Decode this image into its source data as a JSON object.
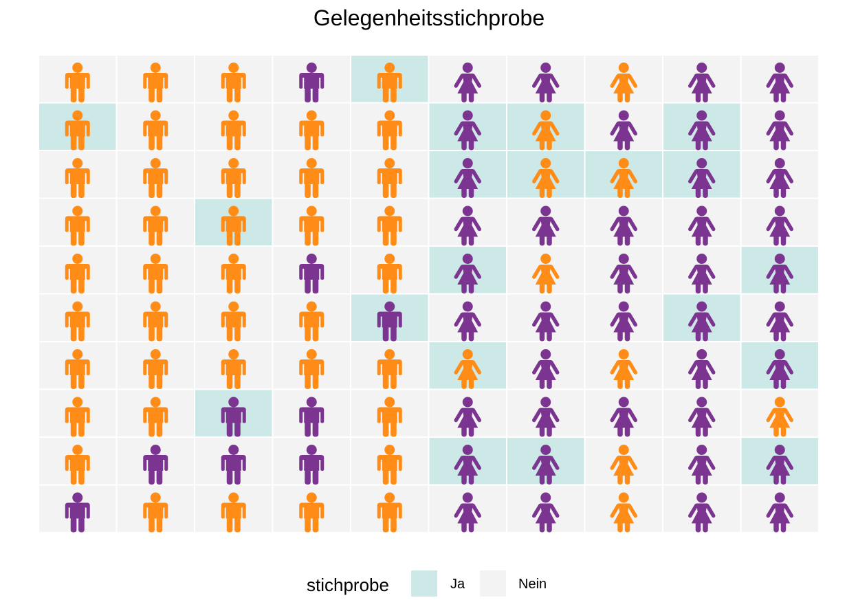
{
  "chart_data": {
    "type": "icon-grid",
    "title": "Gelegenheitsstichprobe",
    "columns": 10,
    "rows": 10,
    "icon_types": {
      "m": "male-person-icon",
      "f": "female-person-icon"
    },
    "column_icon_type": [
      "m",
      "m",
      "m",
      "m",
      "m",
      "f",
      "f",
      "f",
      "f",
      "f"
    ],
    "colors": {
      "orange": "#FF8C16",
      "purple": "#7B3590",
      "sampled_bg": "#CDE9E7",
      "unsampled_bg": "#F3F3F3"
    },
    "icon_colors": [
      [
        "O",
        "O",
        "O",
        "P",
        "O",
        "P",
        "P",
        "O",
        "P",
        "P"
      ],
      [
        "O",
        "O",
        "O",
        "O",
        "O",
        "P",
        "O",
        "P",
        "P",
        "P"
      ],
      [
        "O",
        "O",
        "O",
        "O",
        "O",
        "P",
        "O",
        "O",
        "P",
        "P"
      ],
      [
        "O",
        "O",
        "O",
        "O",
        "O",
        "P",
        "P",
        "P",
        "P",
        "P"
      ],
      [
        "O",
        "O",
        "O",
        "P",
        "O",
        "P",
        "O",
        "P",
        "P",
        "P"
      ],
      [
        "O",
        "O",
        "O",
        "O",
        "P",
        "P",
        "P",
        "P",
        "P",
        "P"
      ],
      [
        "O",
        "O",
        "O",
        "O",
        "O",
        "O",
        "P",
        "O",
        "P",
        "P"
      ],
      [
        "O",
        "O",
        "P",
        "P",
        "O",
        "P",
        "P",
        "P",
        "P",
        "O"
      ],
      [
        "O",
        "P",
        "P",
        "P",
        "O",
        "P",
        "P",
        "O",
        "P",
        "P"
      ],
      [
        "P",
        "O",
        "O",
        "O",
        "O",
        "P",
        "P",
        "O",
        "P",
        "P"
      ]
    ],
    "sampled": [
      [
        0,
        0,
        0,
        0,
        1,
        0,
        0,
        0,
        0,
        0
      ],
      [
        1,
        0,
        0,
        0,
        0,
        1,
        1,
        0,
        1,
        0
      ],
      [
        0,
        0,
        0,
        0,
        0,
        1,
        1,
        1,
        1,
        0
      ],
      [
        0,
        0,
        1,
        0,
        0,
        0,
        0,
        0,
        0,
        0
      ],
      [
        0,
        0,
        0,
        0,
        0,
        1,
        0,
        0,
        0,
        1
      ],
      [
        0,
        0,
        0,
        0,
        1,
        0,
        0,
        0,
        1,
        0
      ],
      [
        0,
        0,
        0,
        0,
        0,
        1,
        0,
        0,
        0,
        1
      ],
      [
        0,
        0,
        1,
        0,
        0,
        0,
        0,
        0,
        0,
        0
      ],
      [
        0,
        0,
        0,
        0,
        0,
        1,
        1,
        0,
        0,
        1
      ],
      [
        0,
        0,
        0,
        0,
        0,
        0,
        0,
        0,
        0,
        0
      ]
    ],
    "legend": {
      "title": "stichprobe",
      "placement": "bottom",
      "items": [
        {
          "label": "Ja",
          "color": "#CDE9E7"
        },
        {
          "label": "Nein",
          "color": "#F3F3F3"
        }
      ]
    }
  }
}
